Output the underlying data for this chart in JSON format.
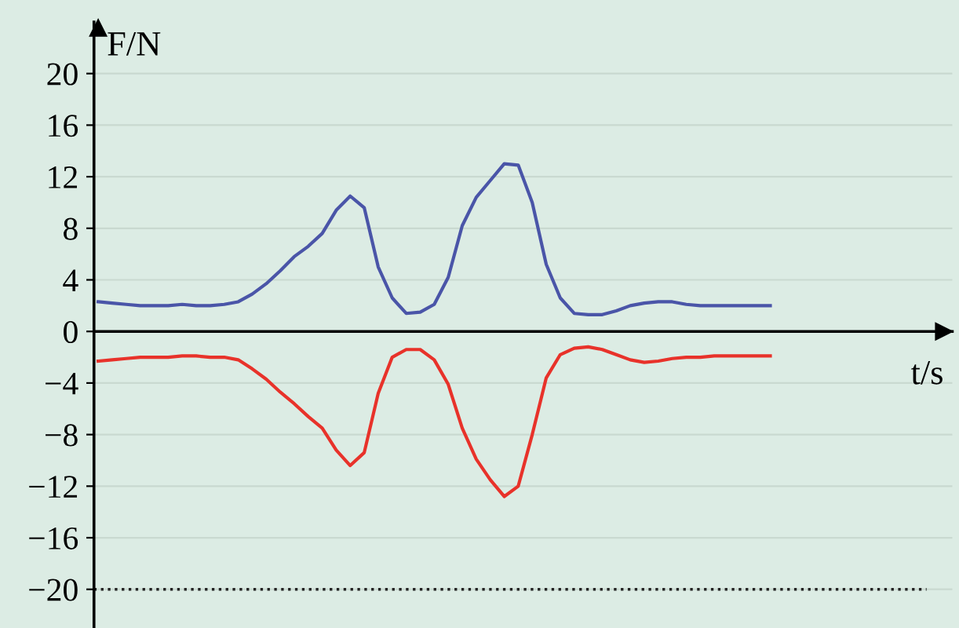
{
  "chart_data": {
    "type": "line",
    "xlabel": "t/s",
    "ylabel": "F/N",
    "categories": [
      null,
      null,
      null,
      null,
      null,
      null,
      null,
      null,
      null,
      null,
      null,
      null,
      null,
      null,
      null,
      null,
      null,
      null,
      null,
      null,
      null,
      null,
      null,
      null,
      null,
      null,
      null,
      null,
      null,
      null,
      null,
      null,
      null,
      null,
      null,
      null,
      null,
      null,
      null,
      null,
      null,
      null,
      null,
      null,
      null,
      null,
      null,
      null,
      null
    ],
    "series": [
      {
        "color": "#4a55a8",
        "values": [
          2.3,
          2.2,
          2.1,
          2.0,
          2.0,
          2.0,
          2.1,
          2.0,
          2.0,
          2.1,
          2.3,
          2.9,
          3.7,
          4.7,
          5.8,
          6.6,
          7.6,
          9.4,
          10.5,
          9.6,
          5.0,
          2.6,
          1.4,
          1.5,
          2.1,
          4.2,
          8.2,
          10.4,
          11.7,
          13.0,
          12.9,
          10.0,
          5.2,
          2.6,
          1.4,
          1.3,
          1.3,
          1.6,
          2.0,
          2.2,
          2.3,
          2.3,
          2.1,
          2.0,
          2.0,
          2.0,
          2.0,
          2.0,
          2.0
        ]
      },
      {
        "color": "#e8322a",
        "values": [
          -2.3,
          -2.2,
          -2.1,
          -2.0,
          -2.0,
          -2.0,
          -1.9,
          -1.9,
          -2.0,
          -2.0,
          -2.2,
          -2.9,
          -3.7,
          -4.7,
          -5.6,
          -6.6,
          -7.5,
          -9.2,
          -10.4,
          -9.4,
          -4.8,
          -2.0,
          -1.4,
          -1.4,
          -2.2,
          -4.1,
          -7.5,
          -9.9,
          -11.5,
          -12.8,
          -12.0,
          -8.0,
          -3.6,
          -1.8,
          -1.3,
          -1.2,
          -1.4,
          -1.8,
          -2.2,
          -2.4,
          -2.3,
          -2.1,
          -2.0,
          -2.0,
          -1.9,
          -1.9,
          -1.9,
          -1.9,
          -1.9
        ]
      }
    ],
    "ylim": [
      -23,
      24
    ],
    "yticks": [
      -20,
      -16,
      -12,
      -8,
      -4,
      0,
      4,
      8,
      12,
      16,
      20
    ],
    "ref_lines": [
      {
        "axis": "y",
        "value": -20,
        "line_style": "dotted",
        "color": "#222222"
      }
    ],
    "grid": "y"
  }
}
